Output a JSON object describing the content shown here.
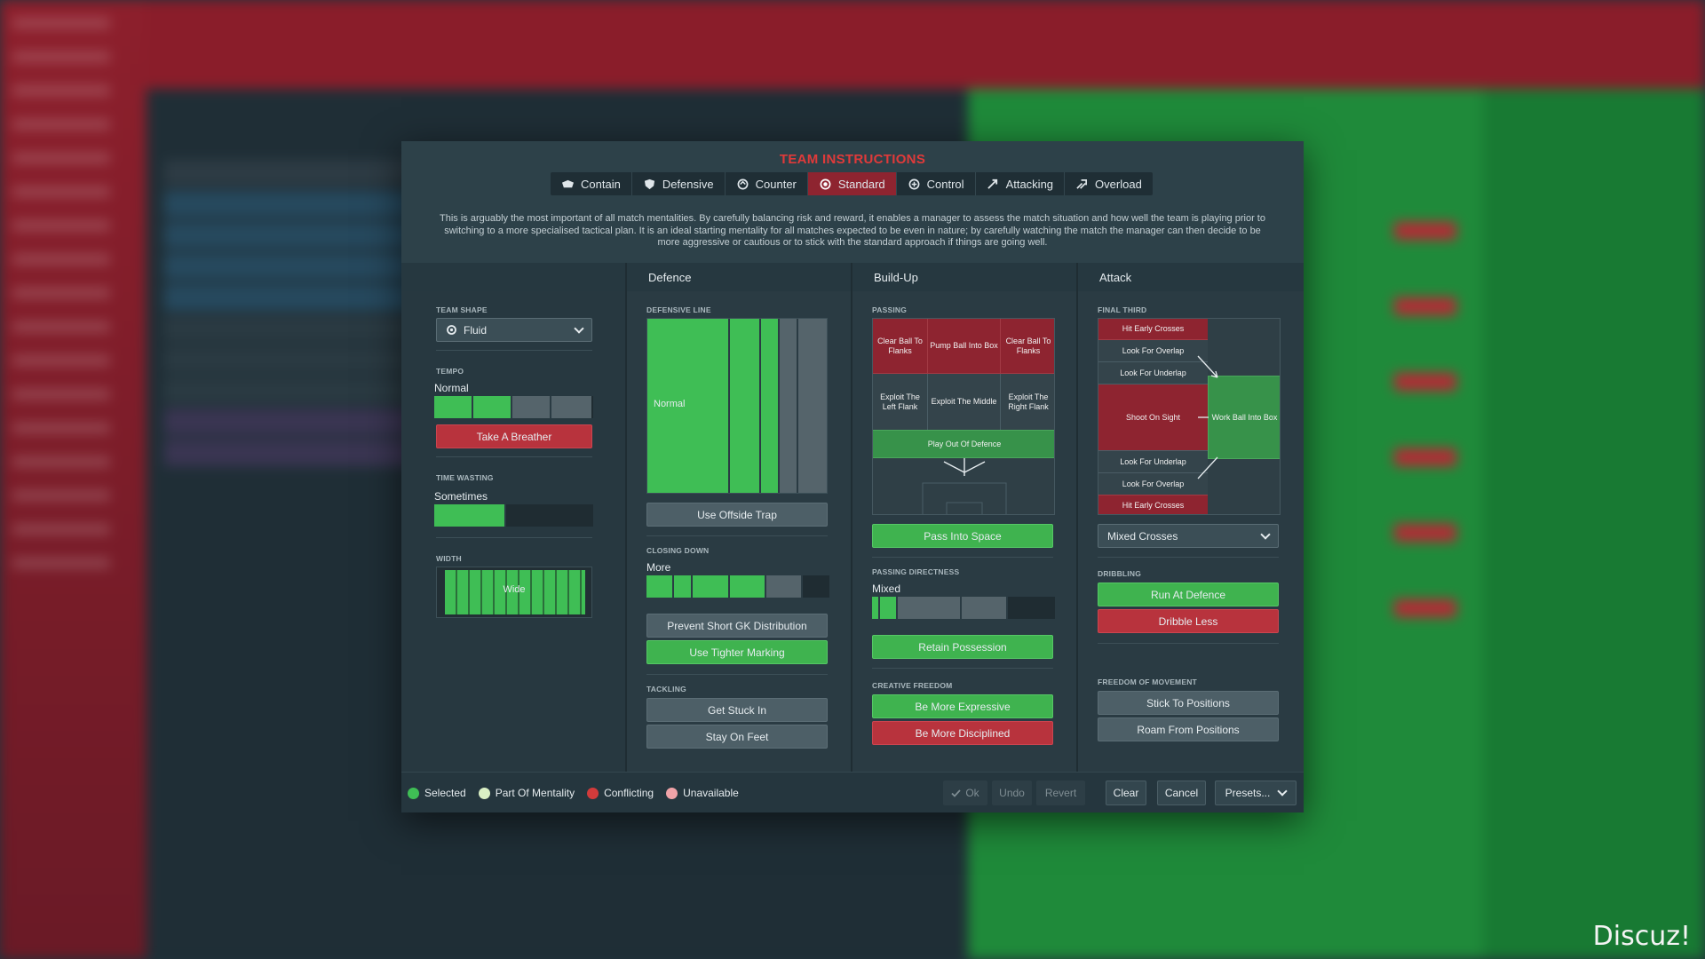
{
  "dialog": {
    "title": "TEAM INSTRUCTIONS",
    "tabs": [
      {
        "label": "Contain",
        "icon": "contain-icon"
      },
      {
        "label": "Defensive",
        "icon": "shield-icon"
      },
      {
        "label": "Counter",
        "icon": "counter-icon"
      },
      {
        "label": "Standard",
        "icon": "standard-icon",
        "active": true
      },
      {
        "label": "Control",
        "icon": "control-icon"
      },
      {
        "label": "Attacking",
        "icon": "attacking-icon"
      },
      {
        "label": "Overload",
        "icon": "overload-icon"
      }
    ],
    "description": "This is arguably the most important of all match mentalities. By carefully balancing risk and reward, it enables a manager to assess the match situation and how well the team is playing prior to switching to a more specialised tactical plan. It is an ideal starting mentality for all matches expected to be even in nature; by carefully watching the match the manager can then decide to be more aggressive or cautious or to stick with the standard approach if things are going well.",
    "columns": {
      "defence": "Defence",
      "buildup": "Build-Up",
      "attack": "Attack"
    }
  },
  "team": {
    "shape_label": "TEAM SHAPE",
    "shape_value": "Fluid",
    "tempo_label": "TEMPO",
    "tempo_value": "Normal",
    "tempo_level": 0.5,
    "take_a_breather": "Take A Breather",
    "time_wasting_label": "TIME WASTING",
    "time_wasting_value": "Sometimes",
    "time_wasting_level": 0.45,
    "width_label": "WIDTH",
    "width_value": "Wide"
  },
  "defence": {
    "defensive_line_label": "DEFENSIVE LINE",
    "defensive_line_value": "Normal",
    "offside_trap": "Use Offside Trap",
    "closing_down_label": "CLOSING DOWN",
    "closing_down_value": "More",
    "prevent_gk": "Prevent Short GK Distribution",
    "tighter_marking": "Use Tighter Marking",
    "tackling_label": "TACKLING",
    "get_stuck_in": "Get Stuck In",
    "stay_on_feet": "Stay On Feet"
  },
  "buildup": {
    "passing_label": "PASSING",
    "zones": {
      "clear_left": "Clear Ball To Flanks",
      "pump": "Pump Ball Into Box",
      "clear_right": "Clear Ball To Flanks",
      "exploit_left": "Exploit The Left Flank",
      "exploit_middle": "Exploit The Middle",
      "exploit_right": "Exploit The Right Flank",
      "play_out": "Play Out Of Defence"
    },
    "pass_into_space": "Pass Into Space",
    "directness_label": "PASSING DIRECTNESS",
    "directness_value": "Mixed",
    "retain_possession": "Retain Possession",
    "creative_label": "CREATIVE FREEDOM",
    "be_expressive": "Be More Expressive",
    "be_disciplined": "Be More Disciplined"
  },
  "attack": {
    "final_third_label": "FINAL THIRD",
    "zones": {
      "hit_top": "Hit Early Crosses",
      "overlap_top": "Look For Overlap",
      "underlap_top": "Look For Underlap",
      "shoot": "Shoot On Sight",
      "work_ball": "Work Ball Into Box",
      "underlap_bottom": "Look For Underlap",
      "overlap_bottom": "Look For Overlap",
      "hit_bottom": "Hit Early Crosses"
    },
    "crosses_value": "Mixed Crosses",
    "dribbling_label": "DRIBBLING",
    "run_at_defence": "Run At Defence",
    "dribble_less": "Dribble Less",
    "freedom_label": "FREEDOM OF MOVEMENT",
    "stick_to_positions": "Stick To Positions",
    "roam_from_positions": "Roam From Positions"
  },
  "footer": {
    "legend": [
      {
        "label": "Selected",
        "color": "#3fbe55"
      },
      {
        "label": "Part Of Mentality",
        "color": "#d9efc4"
      },
      {
        "label": "Conflicting",
        "color": "#d23b3b"
      },
      {
        "label": "Unavailable",
        "color": "#f0a3a8"
      }
    ],
    "ok": "Ok",
    "undo": "Undo",
    "revert": "Revert",
    "clear": "Clear",
    "cancel": "Cancel",
    "presets": "Presets..."
  },
  "watermark": "Discuz!",
  "colors": {
    "accent_red": "#e03a3a",
    "selected_green": "#3fbe55",
    "conflict_red": "#b8333d",
    "active_tab": "#8e2430"
  }
}
